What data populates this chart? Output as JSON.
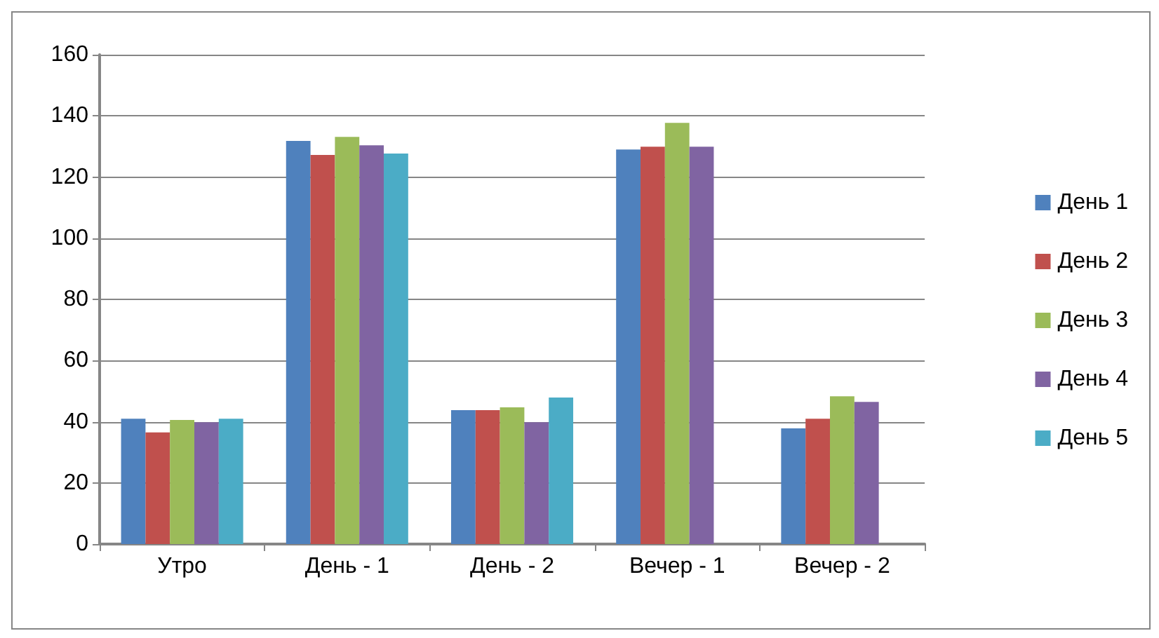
{
  "chart_data": {
    "type": "bar",
    "categories": [
      "Утро",
      "День - 1",
      "День - 2",
      "Вечер - 1",
      "Вечер - 2"
    ],
    "series": [
      {
        "name": "День 1",
        "color": "#4f81bd",
        "values": [
          41,
          131.8,
          43.8,
          129,
          37.8
        ]
      },
      {
        "name": "День 2",
        "color": "#c0504d",
        "values": [
          36.5,
          127.2,
          43.8,
          129.9,
          41
        ]
      },
      {
        "name": "День 3",
        "color": "#9bbb59",
        "values": [
          40.6,
          133.1,
          44.7,
          137.7,
          48.3
        ]
      },
      {
        "name": "День 4",
        "color": "#8064a2",
        "values": [
          39.8,
          130.4,
          39.8,
          129.9,
          46.5
        ]
      },
      {
        "name": "День 5",
        "color": "#4bacc6",
        "values": [
          41,
          127.7,
          47.9,
          null,
          null
        ]
      }
    ],
    "ylim": [
      0,
      160
    ],
    "yticks": [
      0,
      20,
      40,
      60,
      80,
      100,
      120,
      140,
      160
    ],
    "grid": "y",
    "legend": "right"
  }
}
